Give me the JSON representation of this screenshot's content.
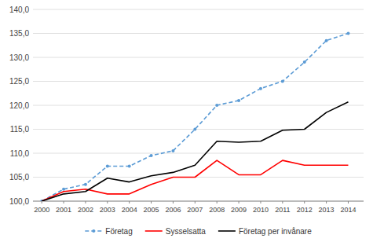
{
  "chart_data": {
    "type": "line",
    "x": [
      2000,
      2001,
      2002,
      2003,
      2004,
      2005,
      2006,
      2007,
      2008,
      2009,
      2010,
      2011,
      2012,
      2013,
      2014
    ],
    "series": [
      {
        "name": "Företag",
        "color": "#5B9BD5",
        "line_style": "dashed",
        "marker": "circle",
        "values": [
          100.0,
          102.5,
          103.5,
          107.3,
          107.3,
          109.5,
          110.5,
          115.0,
          120.0,
          121.0,
          123.5,
          125.0,
          129.0,
          133.5,
          135.0
        ]
      },
      {
        "name": "Sysselsatta",
        "color": "#FF0000",
        "line_style": "solid",
        "values": [
          100.0,
          102.0,
          102.5,
          101.5,
          101.5,
          103.5,
          105.0,
          105.0,
          108.5,
          105.5,
          105.5,
          108.5,
          107.5,
          107.5,
          107.5
        ]
      },
      {
        "name": "Företag per invånare",
        "color": "#000000",
        "line_style": "solid",
        "values": [
          100.0,
          101.5,
          102.0,
          104.8,
          104.0,
          105.3,
          106.0,
          107.5,
          112.5,
          112.3,
          112.5,
          114.8,
          115.0,
          118.5,
          120.7
        ]
      }
    ],
    "xlim": [
      1999.6,
      2014.7
    ],
    "xticks": [
      2000,
      2001,
      2002,
      2003,
      2004,
      2005,
      2006,
      2007,
      2008,
      2009,
      2010,
      2011,
      2012,
      2013,
      2014
    ],
    "ylim": [
      100.0,
      140.0
    ],
    "yticks": [
      {
        "value": 100.0,
        "label": "100,0"
      },
      {
        "value": 105.0,
        "label": "105,0"
      },
      {
        "value": 110.0,
        "label": "110,0"
      },
      {
        "value": 115.0,
        "label": "115,0"
      },
      {
        "value": 120.0,
        "label": "120,0"
      },
      {
        "value": 125.0,
        "label": "125,0"
      },
      {
        "value": 130.0,
        "label": "130,0"
      },
      {
        "value": 135.0,
        "label": "135,0"
      },
      {
        "value": 140.0,
        "label": "140,0"
      }
    ],
    "grid": true,
    "legend": "bottom"
  }
}
